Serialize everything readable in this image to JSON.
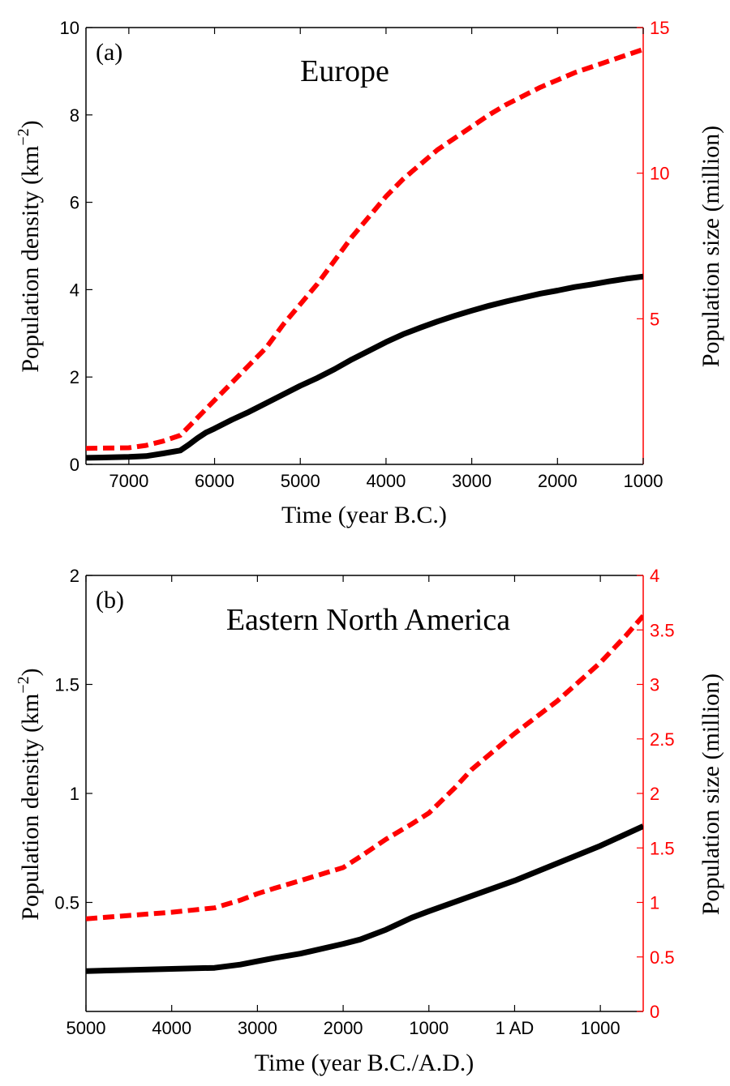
{
  "chart_data": [
    {
      "type": "line",
      "panel_label": "(a)",
      "title": "Europe",
      "xlabel": "Time (year B.C.)",
      "ylabel_left": "Population density (km",
      "ylabel_left_sup": "−2",
      "ylabel_left_close": ")",
      "ylabel_right": "Population size (million)",
      "xlim": [
        7500,
        1000
      ],
      "x_ticks": [
        7000,
        6000,
        5000,
        4000,
        3000,
        2000,
        1000
      ],
      "x_tick_labels": [
        "7000",
        "6000",
        "5000",
        "4000",
        "3000",
        "2000",
        "1000"
      ],
      "ylim_left": [
        0,
        10
      ],
      "y_left_ticks": [
        0,
        2,
        4,
        6,
        8,
        10
      ],
      "y_left_tick_labels": [
        "0",
        "2",
        "4",
        "6",
        "8",
        "10"
      ],
      "ylim_right": [
        0,
        15
      ],
      "y_right_ticks": [
        5,
        10,
        15
      ],
      "y_right_tick_labels": [
        "5",
        "10",
        "15"
      ],
      "grid": false,
      "series": [
        {
          "axis": "left",
          "color": "#000000",
          "style": "solid",
          "x": [
            7500,
            7000,
            6800,
            6600,
            6400,
            6300,
            6200,
            6100,
            6000,
            5800,
            5600,
            5400,
            5200,
            5000,
            4800,
            4600,
            4400,
            4200,
            4000,
            3800,
            3600,
            3400,
            3200,
            3000,
            2800,
            2600,
            2400,
            2200,
            2000,
            1800,
            1600,
            1400,
            1200,
            1000
          ],
          "y": [
            0.15,
            0.17,
            0.19,
            0.25,
            0.32,
            0.45,
            0.6,
            0.73,
            0.82,
            1.02,
            1.2,
            1.4,
            1.6,
            1.8,
            1.98,
            2.18,
            2.4,
            2.6,
            2.8,
            2.98,
            3.13,
            3.27,
            3.4,
            3.52,
            3.63,
            3.73,
            3.82,
            3.91,
            3.98,
            4.06,
            4.12,
            4.19,
            4.25,
            4.3
          ]
        },
        {
          "axis": "right",
          "color": "#ff0000",
          "style": "dashed",
          "x": [
            7500,
            7000,
            6800,
            6600,
            6400,
            6200,
            6000,
            5800,
            5600,
            5400,
            5200,
            5000,
            4800,
            4600,
            4400,
            4200,
            4000,
            3800,
            3600,
            3400,
            3200,
            3000,
            2800,
            2600,
            2400,
            2200,
            2000,
            1800,
            1600,
            1400,
            1200,
            1000
          ],
          "y": [
            0.55,
            0.57,
            0.65,
            0.8,
            1.0,
            1.6,
            2.2,
            2.8,
            3.4,
            4.0,
            4.8,
            5.5,
            6.2,
            7.0,
            7.8,
            8.5,
            9.2,
            9.8,
            10.3,
            10.8,
            11.2,
            11.6,
            12.0,
            12.35,
            12.65,
            12.95,
            13.2,
            13.45,
            13.65,
            13.85,
            14.05,
            14.25
          ]
        }
      ]
    },
    {
      "type": "line",
      "panel_label": "(b)",
      "title": "Eastern North America",
      "xlabel": "Time (year B.C./A.D.)",
      "ylabel_left": "Population density (km",
      "ylabel_left_sup": "−2",
      "ylabel_left_close": ")",
      "ylabel_right": "Population size (million)",
      "xlim": [
        -5000,
        1500
      ],
      "x_ticks": [
        -5000,
        -4000,
        -3000,
        -2000,
        -1000,
        0,
        1000
      ],
      "x_tick_labels": [
        "5000",
        "4000",
        "3000",
        "2000",
        "1000",
        "1 AD",
        "1000"
      ],
      "ylim_left": [
        0,
        2
      ],
      "y_left_ticks": [
        0.5,
        1,
        1.5,
        2
      ],
      "y_left_tick_labels": [
        "0.5",
        "1",
        "1.5",
        "2"
      ],
      "ylim_right": [
        0,
        4
      ],
      "y_right_ticks": [
        0,
        0.5,
        1,
        1.5,
        2,
        2.5,
        3,
        3.5,
        4
      ],
      "y_right_tick_labels": [
        "0",
        "0.5",
        "1",
        "1.5",
        "2",
        "2.5",
        "3",
        "3.5",
        "4"
      ],
      "grid": false,
      "series": [
        {
          "axis": "left",
          "color": "#000000",
          "style": "solid",
          "x": [
            -5000,
            -4500,
            -4000,
            -3500,
            -3200,
            -3000,
            -2800,
            -2500,
            -2000,
            -1800,
            -1500,
            -1200,
            -1000,
            -500,
            0,
            500,
            1000,
            1500
          ],
          "y": [
            0.185,
            0.19,
            0.195,
            0.2,
            0.215,
            0.23,
            0.245,
            0.265,
            0.31,
            0.33,
            0.375,
            0.43,
            0.46,
            0.53,
            0.6,
            0.68,
            0.76,
            0.85
          ]
        },
        {
          "axis": "right",
          "color": "#ff0000",
          "style": "dashed",
          "x": [
            -5000,
            -4500,
            -4000,
            -3500,
            -3200,
            -3000,
            -2800,
            -2500,
            -2000,
            -1800,
            -1500,
            -1200,
            -1000,
            -700,
            -500,
            0,
            500,
            1000,
            1300,
            1500
          ],
          "y": [
            0.85,
            0.88,
            0.91,
            0.95,
            1.02,
            1.08,
            1.13,
            1.2,
            1.32,
            1.42,
            1.58,
            1.72,
            1.82,
            2.05,
            2.22,
            2.55,
            2.85,
            3.2,
            3.45,
            3.63
          ]
        }
      ]
    }
  ]
}
